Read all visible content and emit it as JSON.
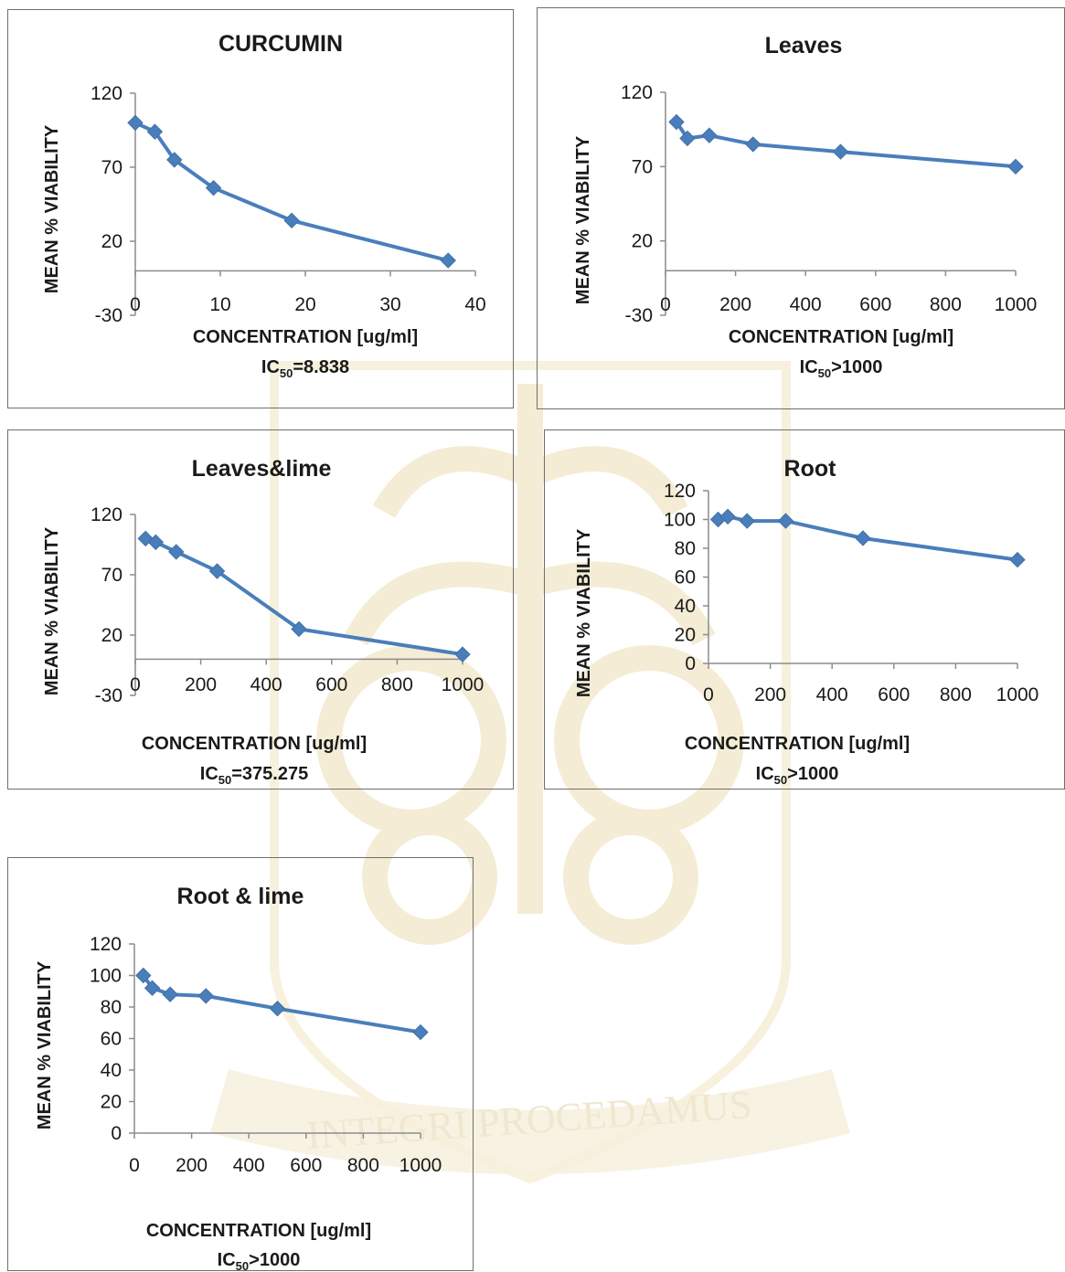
{
  "watermark": {
    "motto": "INTEGRI PROCEDAMUS"
  },
  "chart_data": [
    {
      "id": "curcumin",
      "type": "line",
      "title": "CURCUMIN",
      "xlabel": "CONCENTRATION [ug/ml]",
      "ylabel": "MEAN % VIABILITY",
      "ic50_prefix": "IC",
      "ic50_sub": "50",
      "ic50_value": "=8.838",
      "xlim": [
        0,
        40
      ],
      "ylim": [
        -30,
        120
      ],
      "xticks": [
        0,
        10,
        20,
        30,
        40
      ],
      "yticks": [
        -30,
        20,
        70,
        120
      ],
      "color": "#4a7ebb",
      "x": [
        0,
        2.3,
        4.6,
        9.2,
        18.4,
        36.8
      ],
      "y": [
        100,
        94,
        75,
        56,
        34,
        7
      ]
    },
    {
      "id": "leaves",
      "type": "line",
      "title": "Leaves",
      "xlabel": "CONCENTRATION [ug/ml]",
      "ylabel": "MEAN  % VIABILITY",
      "ic50_prefix": "IC",
      "ic50_sub": "50",
      "ic50_value": ">1000",
      "xlim": [
        0,
        1000
      ],
      "ylim": [
        -30,
        120
      ],
      "xticks": [
        0,
        200,
        400,
        600,
        800,
        1000
      ],
      "yticks": [
        -30,
        20,
        70,
        120
      ],
      "color": "#4a7ebb",
      "x": [
        31.25,
        62.5,
        125,
        250,
        500,
        1000
      ],
      "y": [
        100,
        89,
        91,
        85,
        80,
        70
      ]
    },
    {
      "id": "leaves-lime",
      "type": "line",
      "title": "Leaves&lime",
      "xlabel": "CONCENTRATION [ug/ml]",
      "ylabel": "MEAN % VIABILITY",
      "ic50_prefix": "IC",
      "ic50_sub": "50",
      "ic50_value": "=375.275",
      "xlim": [
        0,
        1000
      ],
      "ylim": [
        -30,
        120
      ],
      "xticks": [
        0,
        200,
        400,
        600,
        800,
        1000
      ],
      "yticks": [
        -30,
        20,
        70,
        120
      ],
      "color": "#4a7ebb",
      "x": [
        31.25,
        62.5,
        125,
        250,
        500,
        1000
      ],
      "y": [
        100,
        97,
        89,
        73,
        25,
        4
      ]
    },
    {
      "id": "root",
      "type": "line",
      "title": "Root",
      "xlabel": "CONCENTRATION [ug/ml]",
      "ylabel": "MEAN % VIABILITY",
      "ic50_prefix": "IC",
      "ic50_sub": "50",
      "ic50_value": ">1000",
      "xlim": [
        0,
        1000
      ],
      "ylim": [
        0,
        120
      ],
      "xticks": [
        0,
        200,
        400,
        600,
        800,
        1000
      ],
      "yticks": [
        0,
        20,
        40,
        60,
        80,
        100,
        120
      ],
      "color": "#4a7ebb",
      "x": [
        31.25,
        62.5,
        125,
        250,
        500,
        1000
      ],
      "y": [
        100,
        102,
        99,
        99,
        87,
        72
      ]
    },
    {
      "id": "root-lime",
      "type": "line",
      "title": "Root & lime",
      "xlabel": "CONCENTRATION [ug/ml]",
      "ylabel": "MEAN % VIABILITY",
      "ic50_prefix": "IC",
      "ic50_sub": "50",
      "ic50_value": ">1000",
      "xlim": [
        0,
        1000
      ],
      "ylim": [
        0,
        120
      ],
      "xticks": [
        0,
        200,
        400,
        600,
        800,
        1000
      ],
      "yticks": [
        0,
        20,
        40,
        60,
        80,
        100,
        120
      ],
      "color": "#4a7ebb",
      "x": [
        31.25,
        62.5,
        125,
        250,
        500,
        1000
      ],
      "y": [
        100,
        92,
        88,
        87,
        79,
        64
      ]
    }
  ]
}
